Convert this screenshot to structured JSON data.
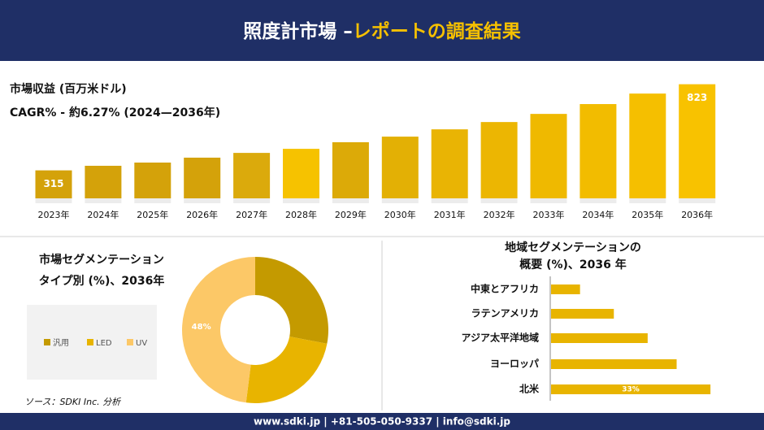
{
  "header": {
    "title_main": "照度計市場 –",
    "title_highlight": "レポートの調査結果"
  },
  "chart_data": [
    {
      "type": "bar",
      "title": "市場収益 (百万米ドル)",
      "subtitle": "CAGR% - 約6.27% (2024—2036年)",
      "categories": [
        "2023年",
        "2024年",
        "2025年",
        "2026年",
        "2027年",
        "2028年",
        "2029年",
        "2030年",
        "2031年",
        "2032年",
        "2033年",
        "2034年",
        "2035年",
        "2036年"
      ],
      "values": [
        315,
        342,
        361,
        390,
        418,
        442,
        481,
        514,
        557,
        600,
        648,
        706,
        768,
        823
      ],
      "value_labels": [
        "315",
        null,
        null,
        null,
        null,
        null,
        null,
        null,
        null,
        null,
        null,
        null,
        null,
        "823"
      ],
      "colors": [
        "#d4a20a",
        "#d4a20a",
        "#d4a20a",
        "#d4a20a",
        "#dbaa0c",
        "#f6c200",
        "#dcaa08",
        "#e3b005",
        "#e9b404",
        "#ecb602",
        "#efb900",
        "#f2bc00",
        "#f5bf00",
        "#f8c200"
      ],
      "ylim": [
        150,
        850
      ]
    },
    {
      "type": "donut",
      "title": [
        "市場セグメンテーション",
        "タイプ別 (%)、2036年"
      ],
      "categories": [
        "汎用",
        "LED",
        "UV"
      ],
      "values": [
        28,
        24,
        48
      ],
      "value_labels": [
        null,
        null,
        "48%"
      ],
      "colors": [
        "#c49a00",
        "#e8b400",
        "#fcc867"
      ]
    },
    {
      "type": "hbar",
      "title": [
        "地域セグメンテーションの",
        "概要 (%)、2036 年"
      ],
      "categories": [
        "中東とアフリカ",
        "ラテンアメリカ",
        "アジア太平洋地域",
        "ヨーロッパ",
        "北米"
      ],
      "values": [
        6,
        13,
        20,
        26,
        33
      ],
      "value_labels": [
        null,
        null,
        null,
        null,
        "33%"
      ],
      "color": "#e8b400",
      "xlim": [
        0,
        35
      ]
    }
  ],
  "source": "ソース：SDKI Inc. 分析",
  "footer": "www.sdki.jp | +81-505-050-9337 | info@sdki.jp"
}
